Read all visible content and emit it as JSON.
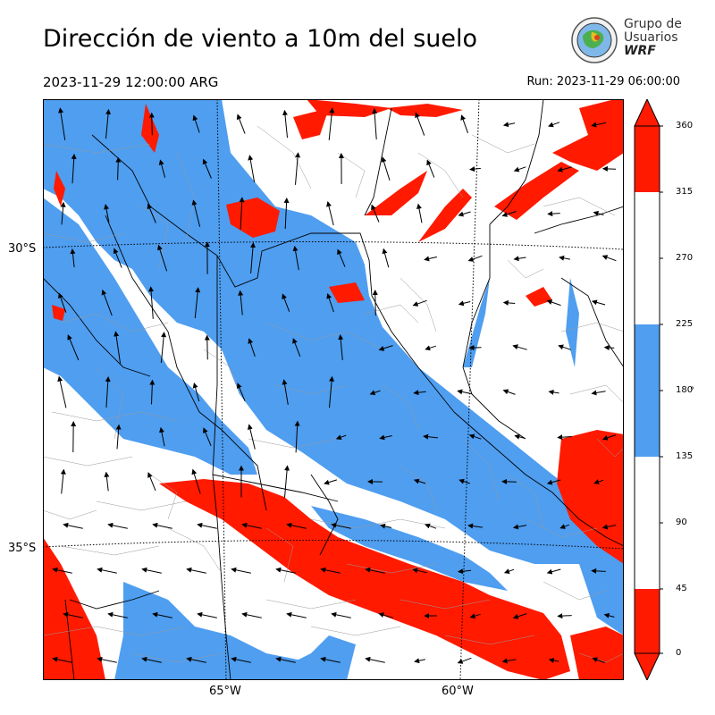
{
  "header": {
    "title": "Dirección de viento a 10m del suelo",
    "valid_time": "2023-11-29 12:00:00 ARG",
    "run_time": "Run: 2023-11-29 06:00:00"
  },
  "logo": {
    "line1": "Grupo de",
    "line2": "Usuarios",
    "line3": "WRF"
  },
  "map": {
    "lat_labels": [
      "30°S",
      "35°S"
    ],
    "lon_labels": [
      "65°W",
      "60°W"
    ],
    "colors": {
      "red": "#ff1a00",
      "blue": "#4f9ef0",
      "white": "#ffffff",
      "border": "#000000",
      "admin": "#9a9a9a"
    }
  },
  "colorbar": {
    "ticks": [
      "360",
      "315",
      "270",
      "225",
      "180",
      "135",
      "90",
      "45",
      "0"
    ],
    "unit": "°",
    "bands": [
      {
        "from": 0,
        "to": 45,
        "color": "#ff1a00"
      },
      {
        "from": 45,
        "to": 135,
        "color": "#ffffff"
      },
      {
        "from": 135,
        "to": 225,
        "color": "#4f9ef0"
      },
      {
        "from": 225,
        "to": 315,
        "color": "#ffffff"
      },
      {
        "from": 315,
        "to": 360,
        "color": "#ff1a00"
      }
    ]
  }
}
